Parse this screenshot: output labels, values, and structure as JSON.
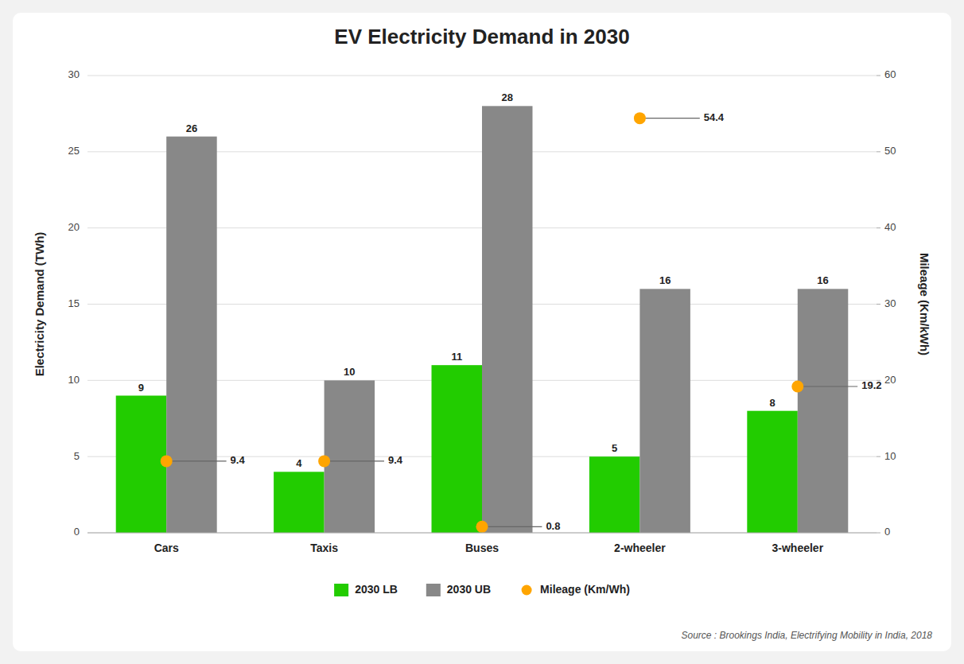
{
  "chart_data": {
    "type": "bar",
    "title": "EV Electricity Demand in 2030",
    "ylabel": "Electricity Demand (TWh)",
    "y2label": "Mileage (Km/kWh)",
    "categories": [
      "Cars",
      "Taxis",
      "Buses",
      "2-wheeler",
      "3-wheeler"
    ],
    "series": [
      {
        "name": "2030 LB",
        "color": "#22cc00",
        "values": [
          9,
          4,
          11,
          5,
          8
        ]
      },
      {
        "name": "2030 UB",
        "color": "#888888",
        "values": [
          26,
          10,
          28,
          16,
          16
        ]
      },
      {
        "name": "Mileage (Km/Wh)",
        "color": "#FFA500",
        "type": "scatter",
        "marker": "circle",
        "axis": "y2",
        "values": [
          9.4,
          9.4,
          0.8,
          54.4,
          19.2
        ]
      }
    ],
    "ylim": [
      0,
      30
    ],
    "yticks": [
      0,
      5,
      10,
      15,
      20,
      25,
      30
    ],
    "y2lim": [
      0,
      60
    ],
    "y2ticks": [
      0,
      10,
      20,
      30,
      40,
      50,
      60
    ],
    "grid": true,
    "data_labels": true,
    "legend": "bottom",
    "annotations": [
      {
        "text": "Source : Brookings India, Electrifying Mobility in India, 2018"
      }
    ]
  }
}
